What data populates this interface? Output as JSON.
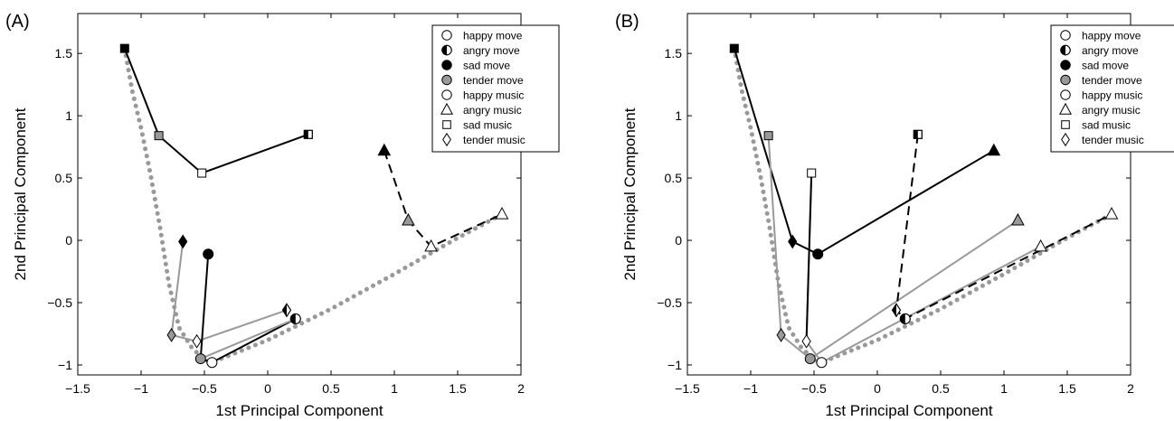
{
  "chart_data": [
    {
      "type": "line",
      "panel_label": "(A)",
      "xlabel": "1st Principal Component",
      "ylabel": "2nd Principal Component",
      "xlim": [
        -1.5,
        2
      ],
      "ylim": [
        -1.08,
        1.82
      ],
      "xticks": [
        -1.5,
        -1,
        -0.5,
        0,
        0.5,
        1,
        1.5,
        2
      ],
      "xtick_labels": [
        "−1.5",
        "−1",
        "−0.5",
        "0",
        "0.5",
        "1",
        "1.5",
        "2"
      ],
      "yticks": [
        -1,
        -0.5,
        0,
        0.5,
        1,
        1.5
      ],
      "ytick_labels": [
        "−1",
        "−0.5",
        "0",
        "0.5",
        "1",
        "1.5"
      ],
      "legend_position": "top-right",
      "legend": [
        {
          "label": "happy move",
          "marker": "circle",
          "fill": "white"
        },
        {
          "label": "angry move",
          "marker": "circle",
          "fill": "half"
        },
        {
          "label": "sad move",
          "marker": "circle",
          "fill": "black"
        },
        {
          "label": "tender move",
          "marker": "circle",
          "fill": "gray"
        },
        {
          "label": "happy music",
          "marker": "circle",
          "fill": "white"
        },
        {
          "label": "angry music",
          "marker": "triangle",
          "fill": "white"
        },
        {
          "label": "sad music",
          "marker": "square",
          "fill": "white"
        },
        {
          "label": "tender music",
          "marker": "diamond",
          "fill": "white"
        }
      ],
      "reference_curve": [
        [
          -1.13,
          1.54
        ],
        [
          -1.07,
          1.2
        ],
        [
          -1.0,
          0.9
        ],
        [
          -0.92,
          0.5
        ],
        [
          -0.85,
          0.1
        ],
        [
          -0.78,
          -0.35
        ],
        [
          -0.7,
          -0.7
        ],
        [
          -0.6,
          -0.86
        ],
        [
          -0.5,
          -0.96
        ],
        [
          -0.44,
          -0.98
        ],
        [
          0.0,
          -0.8
        ],
        [
          0.5,
          -0.55
        ],
        [
          1.0,
          -0.27
        ],
        [
          1.5,
          0.02
        ],
        [
          1.85,
          0.21
        ]
      ],
      "paths": [
        {
          "style": "solid",
          "color": "#000000",
          "points": [
            [
              -1.13,
              1.54
            ],
            [
              -0.86,
              0.84
            ],
            [
              -0.52,
              0.54
            ],
            [
              0.32,
              0.85
            ]
          ]
        },
        {
          "style": "dashed",
          "color": "#000000",
          "points": [
            [
              0.92,
              0.72
            ],
            [
              1.11,
              0.16
            ],
            [
              1.29,
              -0.05
            ],
            [
              1.85,
              0.21
            ]
          ]
        },
        {
          "style": "solid",
          "color": "#999999",
          "points": [
            [
              -0.67,
              -0.01
            ],
            [
              -0.76,
              -0.76
            ],
            [
              -0.56,
              -0.81
            ],
            [
              0.15,
              -0.56
            ]
          ]
        },
        {
          "style": "solid",
          "color": "#000000",
          "points": [
            [
              -0.47,
              -0.11
            ],
            [
              -0.53,
              -0.95
            ],
            [
              -0.44,
              -0.98
            ],
            [
              0.22,
              -0.63
            ]
          ]
        },
        {
          "style": "solid",
          "color": "#999999",
          "points": [
            [
              -0.53,
              -0.95
            ],
            [
              0.22,
              -0.63
            ]
          ]
        }
      ],
      "points": [
        {
          "x": -1.13,
          "y": 1.54,
          "marker": "square",
          "fill": "black"
        },
        {
          "x": -0.86,
          "y": 0.84,
          "marker": "square",
          "fill": "gray"
        },
        {
          "x": -0.52,
          "y": 0.54,
          "marker": "square",
          "fill": "white"
        },
        {
          "x": 0.32,
          "y": 0.85,
          "marker": "square",
          "fill": "half"
        },
        {
          "x": 0.92,
          "y": 0.72,
          "marker": "triangle",
          "fill": "black"
        },
        {
          "x": 1.11,
          "y": 0.16,
          "marker": "triangle",
          "fill": "gray"
        },
        {
          "x": 1.29,
          "y": -0.05,
          "marker": "triangle",
          "fill": "white"
        },
        {
          "x": 1.85,
          "y": 0.21,
          "marker": "triangle",
          "fill": "white"
        },
        {
          "x": -0.67,
          "y": -0.01,
          "marker": "diamond",
          "fill": "black"
        },
        {
          "x": -0.76,
          "y": -0.76,
          "marker": "diamond",
          "fill": "gray"
        },
        {
          "x": -0.56,
          "y": -0.81,
          "marker": "diamond",
          "fill": "white"
        },
        {
          "x": 0.15,
          "y": -0.56,
          "marker": "diamond",
          "fill": "half"
        },
        {
          "x": -0.47,
          "y": -0.11,
          "marker": "circle",
          "fill": "black"
        },
        {
          "x": -0.53,
          "y": -0.95,
          "marker": "circle",
          "fill": "gray"
        },
        {
          "x": -0.44,
          "y": -0.98,
          "marker": "circle",
          "fill": "white"
        },
        {
          "x": 0.22,
          "y": -0.63,
          "marker": "circle",
          "fill": "half"
        }
      ]
    },
    {
      "type": "line",
      "panel_label": "(B)",
      "xlabel": "1st Principal Component",
      "ylabel": "2nd Principal Component",
      "xlim": [
        -1.5,
        2
      ],
      "ylim": [
        -1.08,
        1.82
      ],
      "xticks": [
        -1.5,
        -1,
        -0.5,
        0,
        0.5,
        1,
        1.5,
        2
      ],
      "xtick_labels": [
        "−1.5",
        "−1",
        "−0.5",
        "0",
        "0.5",
        "1",
        "1.5",
        "2"
      ],
      "yticks": [
        -1,
        -0.5,
        0,
        0.5,
        1,
        1.5
      ],
      "ytick_labels": [
        "−1",
        "−0.5",
        "0",
        "0.5",
        "1",
        "1.5"
      ],
      "legend_position": "top-right",
      "legend": [
        {
          "label": "happy move",
          "marker": "circle",
          "fill": "white"
        },
        {
          "label": "angry move",
          "marker": "circle",
          "fill": "half"
        },
        {
          "label": "sad move",
          "marker": "circle",
          "fill": "black"
        },
        {
          "label": "tender move",
          "marker": "circle",
          "fill": "gray"
        },
        {
          "label": "happy music",
          "marker": "circle",
          "fill": "white"
        },
        {
          "label": "angry music",
          "marker": "triangle",
          "fill": "white"
        },
        {
          "label": "sad music",
          "marker": "square",
          "fill": "white"
        },
        {
          "label": "tender music",
          "marker": "diamond",
          "fill": "white"
        }
      ],
      "reference_curve": [
        [
          -1.13,
          1.54
        ],
        [
          -1.07,
          1.2
        ],
        [
          -1.0,
          0.9
        ],
        [
          -0.92,
          0.5
        ],
        [
          -0.85,
          0.1
        ],
        [
          -0.78,
          -0.35
        ],
        [
          -0.7,
          -0.7
        ],
        [
          -0.6,
          -0.86
        ],
        [
          -0.5,
          -0.96
        ],
        [
          -0.44,
          -0.98
        ],
        [
          0.0,
          -0.8
        ],
        [
          0.5,
          -0.55
        ],
        [
          1.0,
          -0.27
        ],
        [
          1.5,
          0.02
        ],
        [
          1.85,
          0.21
        ]
      ],
      "paths": [
        {
          "style": "solid",
          "color": "#000000",
          "points": [
            [
              -1.13,
              1.54
            ],
            [
              -0.67,
              -0.01
            ],
            [
              -0.47,
              -0.11
            ],
            [
              0.92,
              0.72
            ]
          ]
        },
        {
          "style": "solid",
          "color": "#999999",
          "points": [
            [
              -0.86,
              0.84
            ],
            [
              -0.76,
              -0.76
            ],
            [
              -0.53,
              -0.95
            ],
            [
              1.11,
              0.16
            ]
          ]
        },
        {
          "style": "solid",
          "color": "#999999",
          "points": [
            [
              -0.52,
              0.54
            ],
            [
              -0.56,
              -0.81
            ],
            [
              -0.44,
              -0.98
            ],
            [
              1.29,
              -0.05
            ]
          ]
        },
        {
          "style": "solid",
          "color": "#000000",
          "points": [
            [
              -0.52,
              0.54
            ],
            [
              -0.56,
              -0.81
            ]
          ]
        },
        {
          "style": "dashed",
          "color": "#000000",
          "points": [
            [
              0.32,
              0.85
            ],
            [
              0.15,
              -0.56
            ],
            [
              0.22,
              -0.63
            ],
            [
              1.85,
              0.21
            ]
          ]
        }
      ],
      "points": [
        {
          "x": -1.13,
          "y": 1.54,
          "marker": "square",
          "fill": "black"
        },
        {
          "x": -0.86,
          "y": 0.84,
          "marker": "square",
          "fill": "gray"
        },
        {
          "x": -0.52,
          "y": 0.54,
          "marker": "square",
          "fill": "white"
        },
        {
          "x": 0.32,
          "y": 0.85,
          "marker": "square",
          "fill": "half"
        },
        {
          "x": 0.92,
          "y": 0.72,
          "marker": "triangle",
          "fill": "black"
        },
        {
          "x": 1.11,
          "y": 0.16,
          "marker": "triangle",
          "fill": "gray"
        },
        {
          "x": 1.29,
          "y": -0.05,
          "marker": "triangle",
          "fill": "white"
        },
        {
          "x": 1.85,
          "y": 0.21,
          "marker": "triangle",
          "fill": "white"
        },
        {
          "x": -0.67,
          "y": -0.01,
          "marker": "diamond",
          "fill": "black"
        },
        {
          "x": -0.76,
          "y": -0.76,
          "marker": "diamond",
          "fill": "gray"
        },
        {
          "x": -0.56,
          "y": -0.81,
          "marker": "diamond",
          "fill": "white"
        },
        {
          "x": 0.15,
          "y": -0.56,
          "marker": "diamond",
          "fill": "half"
        },
        {
          "x": -0.47,
          "y": -0.11,
          "marker": "circle",
          "fill": "black"
        },
        {
          "x": -0.53,
          "y": -0.95,
          "marker": "circle",
          "fill": "gray"
        },
        {
          "x": -0.44,
          "y": -0.98,
          "marker": "circle",
          "fill": "white"
        },
        {
          "x": 0.22,
          "y": -0.63,
          "marker": "circle",
          "fill": "half"
        }
      ]
    }
  ],
  "colors": {
    "black": "#000000",
    "gray": "#999999",
    "white": "#ffffff",
    "reference_curve": "#999999"
  }
}
